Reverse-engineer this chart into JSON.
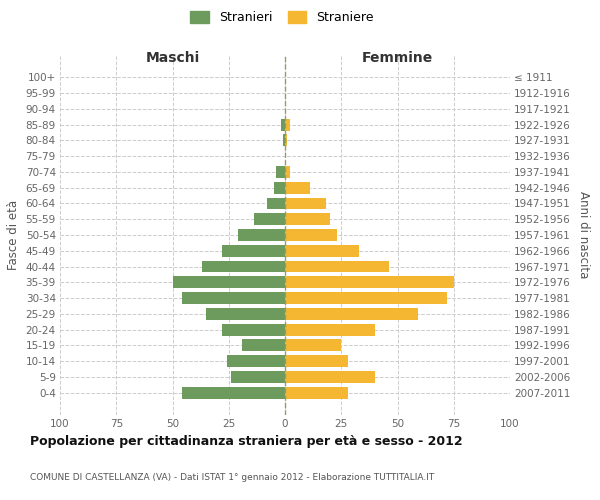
{
  "age_groups": [
    "100+",
    "95-99",
    "90-94",
    "85-89",
    "80-84",
    "75-79",
    "70-74",
    "65-69",
    "60-64",
    "55-59",
    "50-54",
    "45-49",
    "40-44",
    "35-39",
    "30-34",
    "25-29",
    "20-24",
    "15-19",
    "10-14",
    "5-9",
    "0-4"
  ],
  "birth_years": [
    "≤ 1911",
    "1912-1916",
    "1917-1921",
    "1922-1926",
    "1927-1931",
    "1932-1936",
    "1937-1941",
    "1942-1946",
    "1947-1951",
    "1952-1956",
    "1957-1961",
    "1962-1966",
    "1967-1971",
    "1972-1976",
    "1977-1981",
    "1982-1986",
    "1987-1991",
    "1992-1996",
    "1997-2001",
    "2002-2006",
    "2007-2011"
  ],
  "maschi": [
    0,
    0,
    0,
    2,
    1,
    0,
    4,
    5,
    8,
    14,
    21,
    28,
    37,
    50,
    46,
    35,
    28,
    19,
    26,
    24,
    46
  ],
  "femmine": [
    0,
    0,
    0,
    2,
    1,
    0,
    2,
    11,
    18,
    20,
    23,
    33,
    46,
    75,
    72,
    59,
    40,
    25,
    28,
    40,
    28
  ],
  "color_maschi": "#6d9b5e",
  "color_femmine": "#f5b731",
  "background_color": "#ffffff",
  "grid_color": "#cccccc",
  "grid_style": "--",
  "title": "Popolazione per cittadinanza straniera per età e sesso - 2012",
  "subtitle": "COMUNE DI CASTELLANZA (VA) - Dati ISTAT 1° gennaio 2012 - Elaborazione TUTTITALIA.IT",
  "xlabel_left": "Maschi",
  "xlabel_right": "Femmine",
  "ylabel_left": "Fasce di età",
  "ylabel_right": "Anni di nascita",
  "legend_maschi": "Stranieri",
  "legend_femmine": "Straniere",
  "xlim": 100,
  "xtick_positions": [
    -100,
    -75,
    -50,
    -25,
    0,
    25,
    50,
    75,
    100
  ],
  "xticklabels": [
    "100",
    "75",
    "50",
    "25",
    "0",
    "25",
    "50",
    "75",
    "100"
  ]
}
